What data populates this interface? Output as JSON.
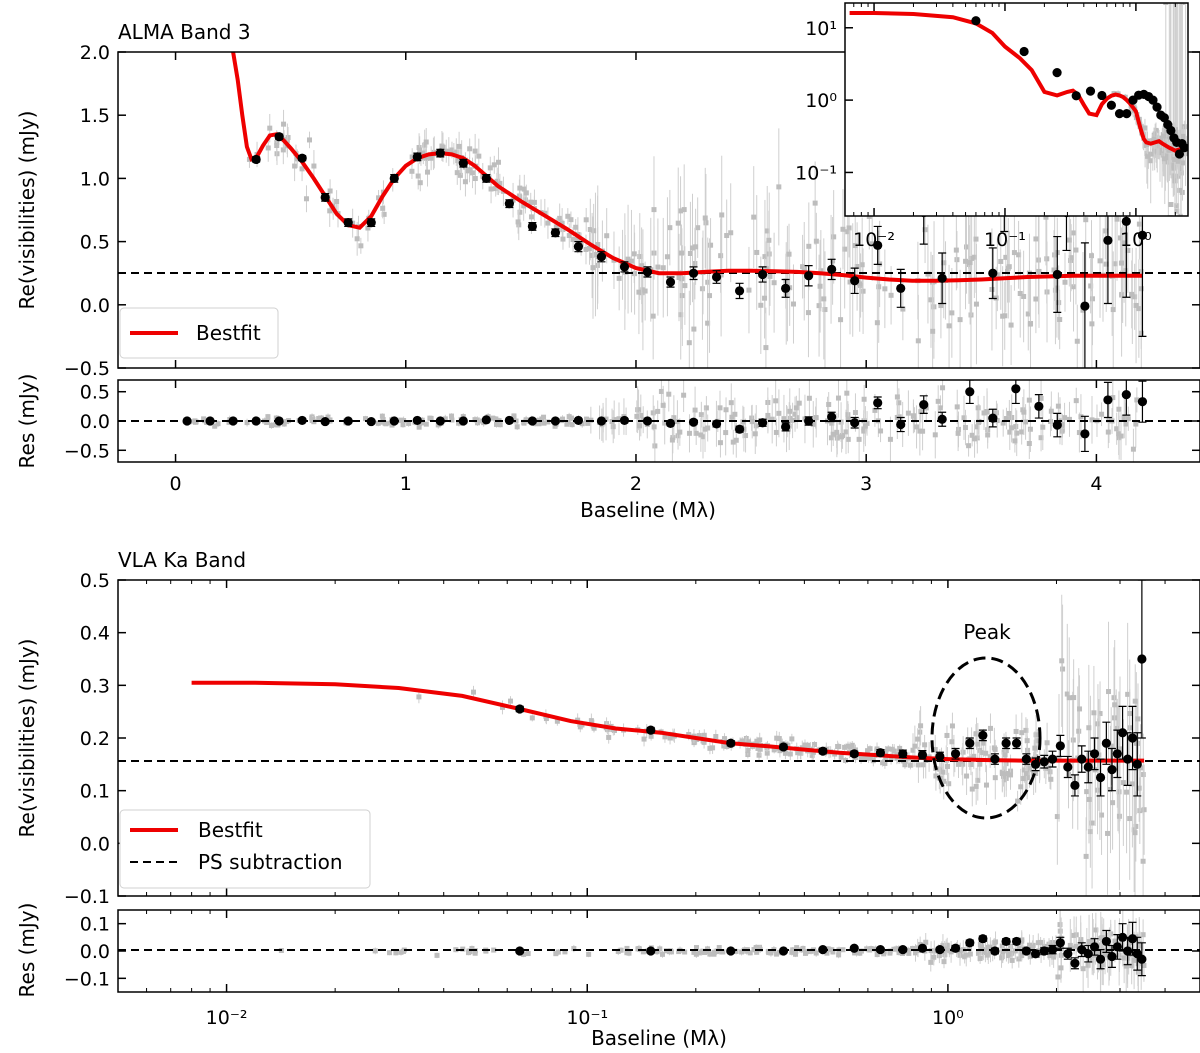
{
  "chart_data": [
    {
      "id": "alma_main",
      "type": "scatter",
      "title": "ALMA Band 3",
      "xlabel": "",
      "ylabel": "Re(visibilities) (mJy)",
      "xscale": "linear",
      "xlim": [
        -0.25,
        4.45
      ],
      "ylim": [
        -0.5,
        2.0
      ],
      "xticks": [
        0,
        1,
        2,
        3,
        4
      ],
      "xtick_labels": [
        "0",
        "1",
        "2",
        "3",
        "4"
      ],
      "yticks": [
        -0.5,
        0.0,
        0.5,
        1.0,
        1.5,
        2.0
      ],
      "ytick_labels": [
        "−0.5",
        "0.0",
        "0.5",
        "1.0",
        "1.5",
        "2.0"
      ],
      "legend": {
        "placement": "lower-left",
        "entries": [
          "Bestfit"
        ]
      },
      "point_source_level": 0.235,
      "bestfit_color": "#ee0000",
      "bestfit": {
        "x": [
          0.25,
          0.27,
          0.29,
          0.31,
          0.33,
          0.35,
          0.38,
          0.41,
          0.44,
          0.47,
          0.5,
          0.55,
          0.6,
          0.65,
          0.7,
          0.75,
          0.8,
          0.85,
          0.9,
          0.95,
          1.0,
          1.05,
          1.1,
          1.15,
          1.2,
          1.25,
          1.3,
          1.35,
          1.4,
          1.5,
          1.6,
          1.7,
          1.8,
          1.9,
          2.0,
          2.1,
          2.2,
          2.3,
          2.4,
          2.5,
          2.6,
          2.7,
          2.8,
          2.9,
          3.0,
          3.1,
          3.2,
          3.3,
          3.4,
          3.5,
          3.6,
          3.7,
          3.8,
          3.9,
          4.0,
          4.1,
          4.2
        ],
        "y": [
          2.0,
          1.78,
          1.5,
          1.25,
          1.15,
          1.16,
          1.26,
          1.34,
          1.35,
          1.3,
          1.24,
          1.13,
          1.0,
          0.86,
          0.72,
          0.63,
          0.61,
          0.7,
          0.86,
          1.0,
          1.1,
          1.16,
          1.19,
          1.2,
          1.19,
          1.16,
          1.1,
          1.02,
          0.94,
          0.82,
          0.71,
          0.6,
          0.48,
          0.37,
          0.29,
          0.25,
          0.25,
          0.26,
          0.27,
          0.27,
          0.265,
          0.26,
          0.25,
          0.235,
          0.215,
          0.2,
          0.19,
          0.19,
          0.195,
          0.2,
          0.21,
          0.22,
          0.225,
          0.23,
          0.23,
          0.23,
          0.23
        ]
      },
      "binned": {
        "x": [
          0.35,
          0.45,
          0.55,
          0.65,
          0.75,
          0.85,
          0.95,
          1.05,
          1.15,
          1.25,
          1.35,
          1.45,
          1.55,
          1.65,
          1.75,
          1.85,
          1.95,
          2.05,
          2.15,
          2.25,
          2.35,
          2.45,
          2.55,
          2.65,
          2.75,
          2.85,
          2.95,
          3.05,
          3.15,
          3.25,
          3.33,
          3.55,
          3.6,
          3.83,
          3.87,
          3.95,
          4.05,
          4.13,
          4.2
        ],
        "y": [
          1.15,
          1.33,
          1.16,
          0.85,
          0.65,
          0.65,
          1.0,
          1.17,
          1.2,
          1.12,
          1.0,
          0.8,
          0.62,
          0.57,
          0.46,
          0.38,
          0.3,
          0.26,
          0.18,
          0.25,
          0.22,
          0.11,
          0.24,
          0.13,
          0.23,
          0.28,
          0.19,
          0.47,
          0.13,
          0.73,
          0.21,
          0.25,
          0.88,
          0.24,
          0.73,
          -0.01,
          0.51,
          0.66,
          0.55
        ],
        "err": [
          0.02,
          0.02,
          0.02,
          0.03,
          0.03,
          0.03,
          0.03,
          0.03,
          0.03,
          0.03,
          0.03,
          0.03,
          0.03,
          0.03,
          0.04,
          0.04,
          0.04,
          0.04,
          0.04,
          0.05,
          0.05,
          0.06,
          0.06,
          0.07,
          0.08,
          0.08,
          0.1,
          0.15,
          0.15,
          0.25,
          0.2,
          0.2,
          0.3,
          0.3,
          0.3,
          0.5,
          0.5,
          0.6,
          0.8
        ]
      },
      "inset": {
        "xscale": "log",
        "yscale": "log",
        "xlim": [
          0.006,
          2.5
        ],
        "ylim": [
          0.025,
          22
        ],
        "xtick_labels": [
          "10⁻²",
          "10⁻¹",
          "10⁰"
        ],
        "ytick_labels": [
          "10⁻¹",
          "10⁰",
          "10¹"
        ],
        "bestfit": {
          "x": [
            0.0065,
            0.01,
            0.02,
            0.04,
            0.06,
            0.08,
            0.1,
            0.13,
            0.16,
            0.2,
            0.25,
            0.3,
            0.33,
            0.36,
            0.4,
            0.44,
            0.5,
            0.55,
            0.6,
            0.65,
            0.7,
            0.75,
            0.8,
            0.85,
            0.9,
            1.0,
            1.05,
            1.1,
            1.15,
            1.2,
            1.3,
            1.4,
            1.5,
            1.6,
            1.8,
            2.0,
            2.2,
            2.4
          ],
          "y": [
            16,
            16,
            15.5,
            14,
            11.5,
            8.5,
            5.5,
            3.8,
            2.6,
            1.3,
            1.16,
            1.3,
            1.35,
            1.2,
            0.86,
            0.65,
            0.62,
            0.88,
            1.05,
            1.15,
            1.19,
            1.16,
            1.1,
            1.0,
            0.9,
            0.7,
            0.5,
            0.37,
            0.29,
            0.26,
            0.25,
            0.26,
            0.27,
            0.25,
            0.22,
            0.2,
            0.21,
            0.22
          ]
        },
        "binned": {
          "x": [
            0.06,
            0.14,
            0.25,
            0.35,
            0.45,
            0.55,
            0.65,
            0.75,
            0.85,
            0.95,
            1.05,
            1.15,
            1.25,
            1.35,
            1.45,
            1.55,
            1.65,
            1.75,
            1.85,
            1.95,
            2.05,
            2.15,
            2.25,
            2.35
          ],
          "y": [
            12.5,
            4.7,
            2.4,
            1.15,
            1.33,
            1.16,
            0.85,
            0.65,
            0.65,
            1.0,
            1.17,
            1.2,
            1.12,
            1.0,
            0.8,
            0.62,
            0.57,
            0.46,
            0.38,
            0.3,
            0.26,
            0.18,
            0.25,
            0.22
          ]
        }
      }
    },
    {
      "id": "alma_res",
      "type": "scatter",
      "xlabel": "Baseline (Mλ)",
      "ylabel": "Res (mJy)",
      "xscale": "linear",
      "xlim": [
        -0.25,
        4.45
      ],
      "ylim": [
        -0.7,
        0.7
      ],
      "yticks": [
        -0.5,
        0.0,
        0.5
      ],
      "ytick_labels": [
        "−0.5",
        "0.0",
        "0.5"
      ],
      "binned": {
        "x": [
          0.05,
          0.15,
          0.25,
          0.35,
          0.45,
          0.55,
          0.65,
          0.75,
          0.85,
          0.95,
          1.05,
          1.15,
          1.25,
          1.35,
          1.45,
          1.55,
          1.65,
          1.75,
          1.85,
          1.95,
          2.05,
          2.15,
          2.25,
          2.35,
          2.45,
          2.55,
          2.65,
          2.75,
          2.85,
          2.95,
          3.05,
          3.15,
          3.25,
          3.33,
          3.45,
          3.55,
          3.65,
          3.75,
          3.83,
          3.95,
          4.05,
          4.13,
          4.2
        ],
        "y": [
          0.0,
          0.0,
          0.0,
          0.0,
          0.0,
          0.01,
          -0.01,
          0.0,
          -0.01,
          0.0,
          0.01,
          0.0,
          0.0,
          0.02,
          0.01,
          0.0,
          0.0,
          0.01,
          0.0,
          0.01,
          0.0,
          -0.04,
          -0.02,
          -0.05,
          -0.14,
          -0.03,
          -0.1,
          0.0,
          0.07,
          -0.03,
          0.31,
          -0.06,
          0.28,
          0.03,
          0.5,
          0.05,
          0.55,
          0.25,
          -0.07,
          -0.22,
          0.36,
          0.45,
          0.33
        ],
        "err": [
          0.02,
          0.02,
          0.02,
          0.02,
          0.02,
          0.02,
          0.02,
          0.02,
          0.02,
          0.02,
          0.02,
          0.02,
          0.02,
          0.02,
          0.02,
          0.02,
          0.02,
          0.03,
          0.03,
          0.03,
          0.03,
          0.04,
          0.04,
          0.05,
          0.05,
          0.06,
          0.07,
          0.07,
          0.08,
          0.09,
          0.1,
          0.12,
          0.15,
          0.12,
          0.2,
          0.15,
          0.25,
          0.2,
          0.2,
          0.3,
          0.3,
          0.35,
          0.35
        ]
      }
    },
    {
      "id": "vla_main",
      "type": "scatter",
      "title": "VLA Ka Band",
      "xlabel": "",
      "ylabel": "Re(visibilities) (mJy)",
      "xscale": "log",
      "xlim": [
        0.005,
        5.0
      ],
      "ylim": [
        -0.1,
        0.5
      ],
      "xtick_labels": [
        "10⁻²",
        "10⁻¹",
        "10⁰"
      ],
      "yticks": [
        -0.1,
        0.0,
        0.1,
        0.2,
        0.3,
        0.4,
        0.5
      ],
      "ytick_labels": [
        "−0.1",
        "0.0",
        "0.1",
        "0.2",
        "0.3",
        "0.4",
        "0.5"
      ],
      "legend": {
        "placement": "lower-left",
        "entries": [
          "Bestfit",
          "PS subtraction"
        ]
      },
      "point_source_level": 0.157,
      "annotation": "Peak",
      "bestfit": {
        "x": [
          0.008,
          0.012,
          0.02,
          0.03,
          0.045,
          0.065,
          0.09,
          0.12,
          0.16,
          0.2,
          0.25,
          0.32,
          0.4,
          0.5,
          0.65,
          0.8,
          1.0,
          1.3,
          1.6,
          2.0,
          2.5,
          3.0,
          3.5
        ],
        "y": [
          0.305,
          0.305,
          0.302,
          0.295,
          0.28,
          0.255,
          0.232,
          0.218,
          0.21,
          0.2,
          0.19,
          0.184,
          0.178,
          0.172,
          0.167,
          0.163,
          0.16,
          0.158,
          0.157,
          0.157,
          0.157,
          0.157,
          0.157
        ]
      },
      "binned": {
        "x": [
          0.065,
          0.15,
          0.25,
          0.35,
          0.45,
          0.55,
          0.65,
          0.75,
          0.85,
          0.95,
          1.05,
          1.15,
          1.25,
          1.35,
          1.45,
          1.55,
          1.65,
          1.75,
          1.85,
          1.95,
          2.05,
          2.15,
          2.25,
          2.35,
          2.45,
          2.55,
          2.65,
          2.75,
          2.85,
          2.95,
          3.05,
          3.15,
          3.25,
          3.35,
          3.45
        ],
        "y": [
          0.255,
          0.215,
          0.19,
          0.183,
          0.175,
          0.17,
          0.172,
          0.17,
          0.168,
          0.165,
          0.17,
          0.19,
          0.205,
          0.16,
          0.19,
          0.19,
          0.16,
          0.15,
          0.155,
          0.16,
          0.185,
          0.145,
          0.11,
          0.16,
          0.145,
          0.17,
          0.125,
          0.19,
          0.14,
          0.17,
          0.21,
          0.16,
          0.2,
          0.15,
          0.35
        ],
        "err": [
          0.005,
          0.005,
          0.005,
          0.005,
          0.005,
          0.005,
          0.006,
          0.007,
          0.008,
          0.008,
          0.01,
          0.01,
          0.01,
          0.01,
          0.01,
          0.01,
          0.01,
          0.012,
          0.012,
          0.015,
          0.02,
          0.02,
          0.02,
          0.025,
          0.03,
          0.03,
          0.035,
          0.04,
          0.04,
          0.045,
          0.05,
          0.05,
          0.06,
          0.06,
          0.15
        ]
      }
    },
    {
      "id": "vla_res",
      "type": "scatter",
      "xlabel": "Baseline (Mλ)",
      "ylabel": "Res (mJy)",
      "xscale": "log",
      "xlim": [
        0.005,
        5.0
      ],
      "ylim": [
        -0.15,
        0.15
      ],
      "xtick_labels": [
        "10⁻²",
        "10⁻¹",
        "10⁰"
      ],
      "yticks": [
        -0.1,
        0.0,
        0.1
      ],
      "ytick_labels": [
        "−0.1",
        "0.0",
        "0.1"
      ],
      "binned": {
        "x": [
          0.065,
          0.15,
          0.25,
          0.35,
          0.45,
          0.55,
          0.65,
          0.75,
          0.85,
          0.95,
          1.05,
          1.15,
          1.25,
          1.35,
          1.45,
          1.55,
          1.65,
          1.75,
          1.85,
          1.95,
          2.05,
          2.15,
          2.25,
          2.35,
          2.45,
          2.55,
          2.65,
          2.75,
          2.85,
          2.95,
          3.05,
          3.15,
          3.25,
          3.35,
          3.45
        ],
        "y": [
          0.0,
          0.0,
          0.0,
          0.0,
          0.005,
          0.01,
          0.005,
          0.005,
          0.01,
          0.005,
          0.01,
          0.03,
          0.045,
          0.0,
          0.035,
          0.035,
          0.0,
          -0.01,
          0.0,
          0.005,
          0.03,
          -0.01,
          -0.045,
          0.005,
          -0.01,
          0.015,
          -0.03,
          0.035,
          -0.02,
          0.015,
          0.05,
          0.0,
          0.045,
          -0.01,
          -0.03
        ],
        "err": [
          0.005,
          0.005,
          0.005,
          0.005,
          0.005,
          0.005,
          0.006,
          0.007,
          0.008,
          0.008,
          0.01,
          0.01,
          0.01,
          0.01,
          0.01,
          0.01,
          0.01,
          0.012,
          0.012,
          0.015,
          0.02,
          0.02,
          0.02,
          0.025,
          0.03,
          0.03,
          0.035,
          0.04,
          0.04,
          0.045,
          0.05,
          0.05,
          0.06,
          0.06,
          0.06
        ]
      }
    }
  ]
}
